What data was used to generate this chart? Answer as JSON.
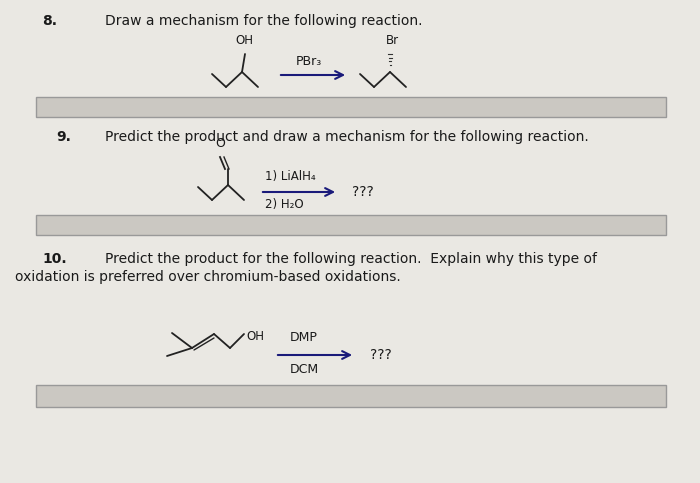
{
  "page_bg": "#eae8e3",
  "text_color": "#1a1a1a",
  "arrow_color": "#1a1a7a",
  "box_bg": "#d0cec9",
  "box_edge": "#aaaaaa",
  "q8_number": "8.",
  "q8_text": "Draw a mechanism for the following reaction.",
  "q9_number": "9.",
  "q9_text": "Predict the product and draw a mechanism for the following reaction.",
  "q10_number": "10.",
  "q10_text": "Predict the product for the following reaction.  Explain why this type of",
  "q10_text2": "oxidation is preferred over chromium-based oxidations.",
  "reagent8": "PBr₃",
  "product8": "Br",
  "reagent9_1": "1) LiAlH₄",
  "reagent9_2": "2) H₂O",
  "product9": "???",
  "reagent10_1": "DMP",
  "reagent10_2": "DCM",
  "product10": "???",
  "oh_label8": "OH",
  "oh_label10": "OH",
  "o_label9": "O"
}
